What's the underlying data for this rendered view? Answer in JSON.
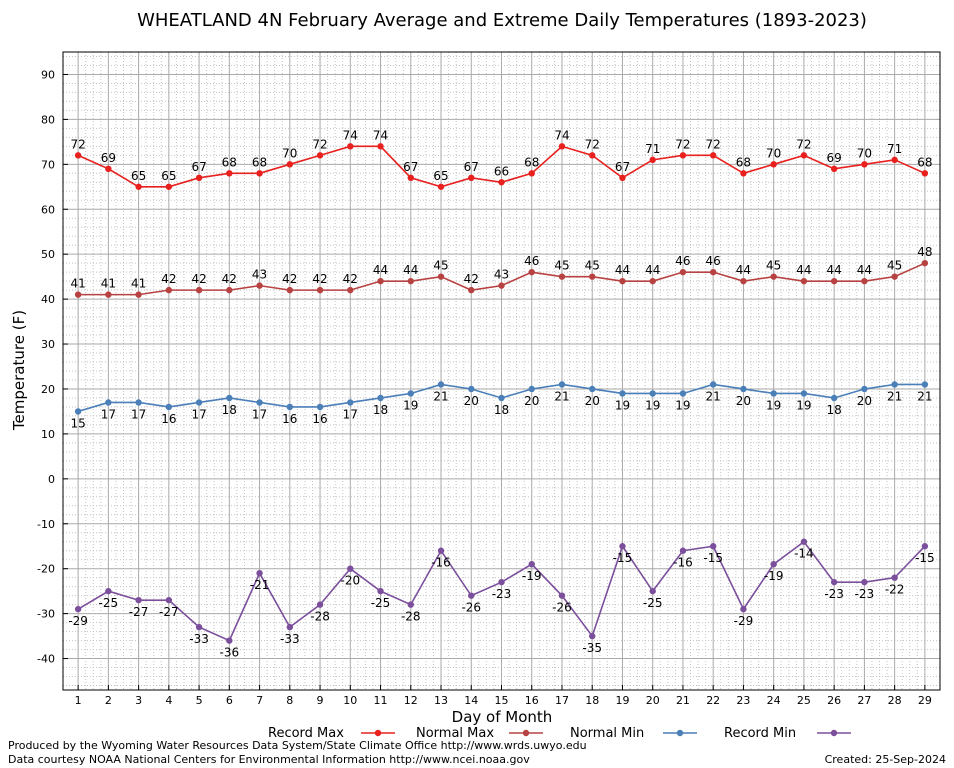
{
  "chart_data": {
    "type": "line",
    "title": "WHEATLAND 4N February Average and Extreme Daily Temperatures (1893-2023)",
    "xlabel": "Day of Month",
    "ylabel": "Temperature (F)",
    "x": [
      1,
      2,
      3,
      4,
      5,
      6,
      7,
      8,
      9,
      10,
      11,
      12,
      13,
      14,
      15,
      16,
      17,
      18,
      19,
      20,
      21,
      22,
      23,
      24,
      25,
      26,
      27,
      28,
      29
    ],
    "xlim": [
      0.5,
      29.5
    ],
    "ylim": [
      -47,
      95
    ],
    "yticks": [
      90,
      80,
      70,
      60,
      50,
      40,
      30,
      20,
      10,
      0,
      -10,
      -20,
      -30,
      -40
    ],
    "grid": true,
    "legend_position": "bottom",
    "series": [
      {
        "name": "Record Max",
        "color": "#e8201e",
        "label_pos": "above",
        "values": [
          72,
          69,
          65,
          65,
          67,
          68,
          68,
          70,
          72,
          74,
          74,
          67,
          65,
          67,
          66,
          68,
          74,
          72,
          67,
          71,
          72,
          72,
          68,
          70,
          72,
          69,
          70,
          71,
          68
        ]
      },
      {
        "name": "Normal Max",
        "color": "#b84242",
        "label_pos": "above",
        "values": [
          41,
          41,
          41,
          42,
          42,
          42,
          43,
          42,
          42,
          42,
          44,
          44,
          45,
          42,
          43,
          46,
          45,
          45,
          44,
          44,
          46,
          46,
          44,
          45,
          44,
          44,
          44,
          45,
          48
        ]
      },
      {
        "name": "Normal Min",
        "color": "#4a7fb8",
        "label_pos": "below",
        "values": [
          15,
          17,
          17,
          16,
          17,
          18,
          17,
          16,
          16,
          17,
          18,
          19,
          21,
          20,
          18,
          20,
          21,
          20,
          19,
          19,
          19,
          21,
          20,
          19,
          19,
          18,
          20,
          21,
          21
        ]
      },
      {
        "name": "Record Min",
        "color": "#7b4f9c",
        "label_pos": "below",
        "values": [
          -29,
          -25,
          -27,
          -27,
          -33,
          -36,
          -21,
          -33,
          -28,
          -20,
          -25,
          -28,
          -16,
          -26,
          -23,
          -19,
          -26,
          -35,
          -15,
          -25,
          -16,
          -15,
          -29,
          -19,
          -14,
          -23,
          -23,
          -22,
          -15
        ]
      }
    ]
  },
  "footer": {
    "produced_by": "Produced by the Wyoming Water Resources Data System/State Climate Office http://www.wrds.uwyo.edu",
    "courtesy": "Data courtesy NOAA National Centers for Environmental Information http://www.ncei.noaa.gov",
    "created": "Created:  25-Sep-2024"
  }
}
